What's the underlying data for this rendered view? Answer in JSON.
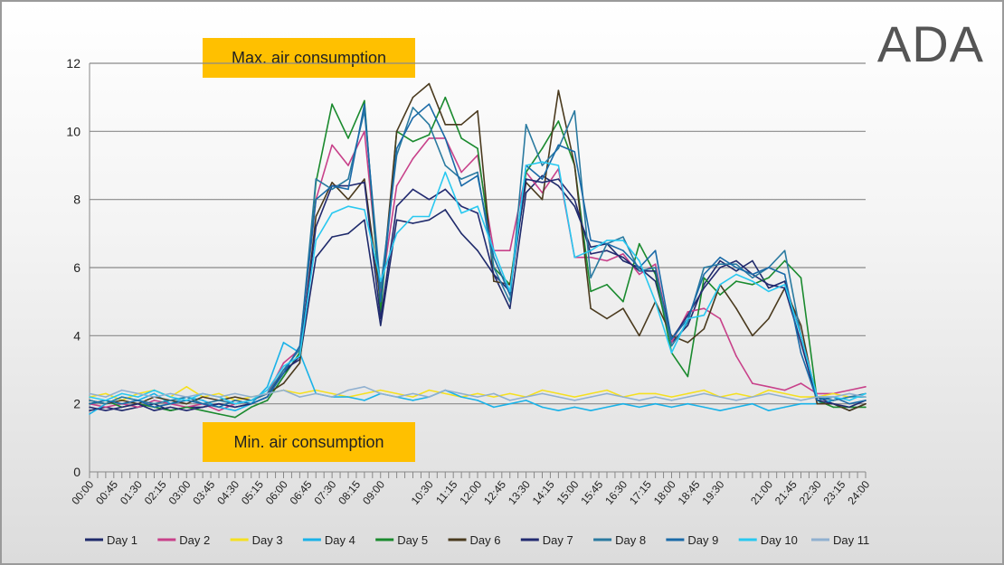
{
  "title": "ADA",
  "annotations": {
    "max": "Max. air consumption",
    "min": "Min. air consumption"
  },
  "chart_data": {
    "type": "line",
    "title": "ADA",
    "xlabel": "",
    "ylabel": "",
    "ylim": [
      0,
      12
    ],
    "yticks": [
      "0",
      "2",
      "4",
      "6",
      "8",
      "10",
      "12"
    ],
    "x_tick_labels": [
      "00:00",
      "00:45",
      "01:30",
      "02:15",
      "03:00",
      "03:45",
      "04:30",
      "05:15",
      "06:00",
      "06:45",
      "07:30",
      "08:15",
      "09:00",
      "10:30",
      "11:15",
      "12:00",
      "12:45",
      "13:30",
      "14:15",
      "15:00",
      "15:45",
      "16:30",
      "17:15",
      "18:00",
      "18:45",
      "19:30",
      "21:00",
      "21:45",
      "22:30",
      "23:15",
      "24:00"
    ],
    "x_hours": [
      0,
      0.5,
      1,
      1.5,
      2,
      2.5,
      3,
      3.5,
      4,
      4.5,
      5,
      5.5,
      6,
      6.5,
      7,
      7.5,
      8,
      8.5,
      9,
      9.5,
      10,
      10.5,
      11,
      11.5,
      12,
      12.5,
      13,
      13.5,
      14,
      14.5,
      15,
      15.5,
      16,
      16.5,
      17,
      17.5,
      18,
      18.5,
      19,
      19.5,
      20,
      20.5,
      21,
      21.5,
      22,
      22.5,
      23,
      23.5,
      24
    ],
    "grid": true,
    "legend": "bottom",
    "series": [
      {
        "name": "Day 1",
        "color": "#1f2a6b",
        "values": [
          1.8,
          1.9,
          1.8,
          1.9,
          2.0,
          1.8,
          1.9,
          1.9,
          2.0,
          1.9,
          2.0,
          2.2,
          3.0,
          3.3,
          6.3,
          6.9,
          7.0,
          7.4,
          4.3,
          7.4,
          7.3,
          7.4,
          7.7,
          7.0,
          6.5,
          5.8,
          4.8,
          8.2,
          8.7,
          8.4,
          7.8,
          6.6,
          6.7,
          6.2,
          6.0,
          5.6,
          3.8,
          4.3,
          5.5,
          6.2,
          5.9,
          6.2,
          5.4,
          5.6,
          4.0,
          2.2,
          2.0,
          1.8,
          2.0
        ]
      },
      {
        "name": "Day 2",
        "color": "#c8418a",
        "values": [
          2.0,
          1.9,
          2.0,
          1.9,
          2.1,
          2.0,
          1.9,
          2.0,
          1.8,
          2.0,
          2.1,
          2.3,
          3.2,
          3.6,
          8.0,
          9.6,
          9.0,
          10.0,
          5.2,
          8.4,
          9.2,
          9.8,
          9.8,
          8.8,
          9.3,
          6.5,
          6.5,
          8.8,
          8.2,
          8.9,
          6.3,
          6.3,
          6.2,
          6.4,
          5.8,
          6.1,
          3.8,
          4.7,
          4.8,
          4.5,
          3.4,
          2.6,
          2.5,
          2.4,
          2.6,
          2.3,
          2.3,
          2.4,
          2.5
        ]
      },
      {
        "name": "Day 3",
        "color": "#f5e020",
        "values": [
          2.2,
          2.3,
          2.1,
          2.3,
          2.4,
          2.2,
          2.5,
          2.2,
          2.3,
          2.1,
          2.2,
          2.3,
          2.4,
          2.3,
          2.4,
          2.3,
          2.2,
          2.3,
          2.4,
          2.3,
          2.2,
          2.4,
          2.3,
          2.2,
          2.3,
          2.2,
          2.3,
          2.2,
          2.4,
          2.3,
          2.2,
          2.3,
          2.4,
          2.2,
          2.3,
          2.3,
          2.2,
          2.3,
          2.4,
          2.2,
          2.3,
          2.2,
          2.4,
          2.3,
          2.2,
          2.2,
          2.3,
          2.2,
          2.2
        ]
      },
      {
        "name": "Day 4",
        "color": "#1ab2e8",
        "values": [
          1.7,
          2.0,
          2.2,
          2.1,
          2.3,
          2.0,
          2.2,
          2.1,
          1.9,
          1.8,
          2.0,
          2.5,
          3.8,
          3.5,
          2.3,
          2.2,
          2.2,
          2.1,
          2.3,
          2.2,
          2.1,
          2.2,
          2.4,
          2.2,
          2.1,
          1.9,
          2.0,
          2.1,
          1.9,
          1.8,
          1.9,
          1.8,
          1.9,
          2.0,
          1.9,
          2.0,
          1.9,
          2.0,
          1.9,
          1.8,
          1.9,
          2.0,
          1.8,
          1.9,
          2.0,
          2.0,
          2.1,
          2.2,
          2.2
        ]
      },
      {
        "name": "Day 5",
        "color": "#1a8a2e",
        "values": [
          2.0,
          2.1,
          1.9,
          2.0,
          1.9,
          1.8,
          1.9,
          1.8,
          1.7,
          1.6,
          1.9,
          2.1,
          2.8,
          3.5,
          8.5,
          10.8,
          9.8,
          10.9,
          4.7,
          10.0,
          9.7,
          9.9,
          11.0,
          9.8,
          9.5,
          6.0,
          5.5,
          8.8,
          9.5,
          10.3,
          9.0,
          5.3,
          5.5,
          5.0,
          6.7,
          5.8,
          3.5,
          2.8,
          5.7,
          5.2,
          5.6,
          5.5,
          5.7,
          6.2,
          5.7,
          2.1,
          1.9,
          1.9,
          1.9
        ]
      },
      {
        "name": "Day 6",
        "color": "#4a3a1e",
        "values": [
          2.1,
          2.0,
          2.1,
          2.0,
          2.2,
          2.1,
          2.0,
          2.2,
          2.1,
          2.2,
          2.1,
          2.3,
          2.6,
          3.2,
          7.5,
          8.5,
          8.0,
          8.6,
          5.0,
          10.0,
          11.0,
          11.4,
          10.2,
          10.2,
          10.6,
          5.6,
          5.5,
          8.5,
          8.0,
          11.2,
          9.0,
          4.8,
          4.5,
          4.8,
          4.0,
          5.0,
          4.0,
          3.8,
          4.2,
          5.5,
          4.8,
          4.0,
          4.5,
          5.4,
          4.3,
          2.0,
          2.0,
          1.8,
          2.0
        ]
      },
      {
        "name": "Day 7",
        "color": "#222a70",
        "values": [
          1.9,
          1.8,
          1.9,
          2.0,
          1.8,
          1.9,
          1.8,
          1.9,
          2.0,
          1.9,
          2.0,
          2.2,
          2.9,
          3.4,
          7.2,
          8.4,
          8.4,
          8.5,
          4.5,
          7.8,
          8.3,
          8.0,
          8.3,
          7.8,
          7.6,
          5.8,
          5.3,
          8.6,
          8.5,
          8.6,
          8.0,
          6.4,
          6.5,
          6.3,
          5.9,
          5.9,
          3.9,
          4.6,
          5.4,
          6.0,
          6.2,
          5.8,
          5.5,
          5.4,
          3.8,
          2.1,
          2.0,
          1.9,
          2.1
        ]
      },
      {
        "name": "Day 8",
        "color": "#2a7aa0",
        "values": [
          2.1,
          2.0,
          2.2,
          2.1,
          2.0,
          2.1,
          2.2,
          2.0,
          2.1,
          2.0,
          2.1,
          2.3,
          3.0,
          3.6,
          8.6,
          8.3,
          8.6,
          10.6,
          5.4,
          9.3,
          10.7,
          10.2,
          9.0,
          8.6,
          8.8,
          6.0,
          5.0,
          10.2,
          9.0,
          9.5,
          10.6,
          5.7,
          6.7,
          6.9,
          5.9,
          6.0,
          3.7,
          4.4,
          6.0,
          6.1,
          6.1,
          5.7,
          6.0,
          6.5,
          4.0,
          2.2,
          2.1,
          2.2,
          2.3
        ]
      },
      {
        "name": "Day 9",
        "color": "#1a6aa8",
        "values": [
          2.0,
          2.1,
          2.0,
          2.1,
          1.9,
          2.0,
          2.1,
          2.0,
          1.9,
          2.1,
          2.0,
          2.2,
          2.9,
          3.7,
          8.0,
          8.4,
          8.3,
          10.8,
          5.0,
          9.5,
          10.4,
          10.8,
          9.8,
          8.4,
          8.7,
          6.3,
          5.2,
          9.0,
          8.6,
          9.6,
          9.4,
          6.8,
          6.7,
          6.5,
          6.0,
          6.5,
          3.9,
          4.5,
          5.8,
          6.3,
          6.0,
          5.8,
          6.0,
          5.8,
          3.5,
          2.1,
          2.2,
          2.0,
          2.1
        ]
      },
      {
        "name": "Day 10",
        "color": "#28c8f0",
        "values": [
          2.2,
          2.1,
          2.3,
          2.2,
          2.4,
          2.2,
          2.1,
          2.3,
          2.2,
          2.0,
          2.1,
          2.4,
          3.1,
          3.4,
          6.8,
          7.6,
          7.8,
          7.7,
          5.6,
          7.0,
          7.5,
          7.5,
          8.8,
          7.6,
          7.8,
          6.5,
          5.3,
          9.0,
          9.1,
          9.0,
          6.3,
          6.5,
          6.8,
          6.8,
          6.2,
          5.0,
          3.5,
          4.5,
          4.6,
          5.5,
          5.8,
          5.6,
          5.3,
          5.5,
          4.0,
          2.2,
          2.2,
          2.1,
          2.3
        ]
      },
      {
        "name": "Day 11",
        "color": "#90b0d0",
        "values": [
          2.3,
          2.2,
          2.4,
          2.3,
          2.2,
          2.3,
          2.2,
          2.3,
          2.2,
          2.3,
          2.2,
          2.3,
          2.4,
          2.2,
          2.3,
          2.2,
          2.4,
          2.5,
          2.3,
          2.2,
          2.3,
          2.2,
          2.4,
          2.3,
          2.2,
          2.3,
          2.1,
          2.2,
          2.3,
          2.2,
          2.1,
          2.2,
          2.3,
          2.2,
          2.1,
          2.2,
          2.1,
          2.2,
          2.3,
          2.2,
          2.1,
          2.2,
          2.3,
          2.2,
          2.1,
          2.2,
          2.2,
          2.3,
          2.2
        ]
      }
    ]
  }
}
